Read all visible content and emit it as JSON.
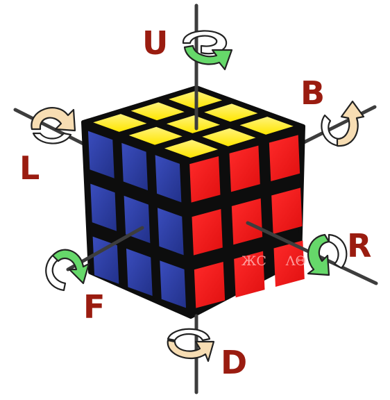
{
  "labels": {
    "up": "U",
    "back": "B",
    "left": "L",
    "right": "R",
    "front": "F",
    "down": "D"
  },
  "colors": {
    "label": "#9a1c10",
    "yellow": "#ffee00",
    "blue": "#2d3fa7",
    "red": "#ff1a1a",
    "body": "#0d0d0d",
    "arrow_green": "#66d86a",
    "arrow_tan": "#f7ddb3",
    "axis": "#3d3d3d"
  },
  "watermark": "ЖC⠀⠀ΛΘ"
}
